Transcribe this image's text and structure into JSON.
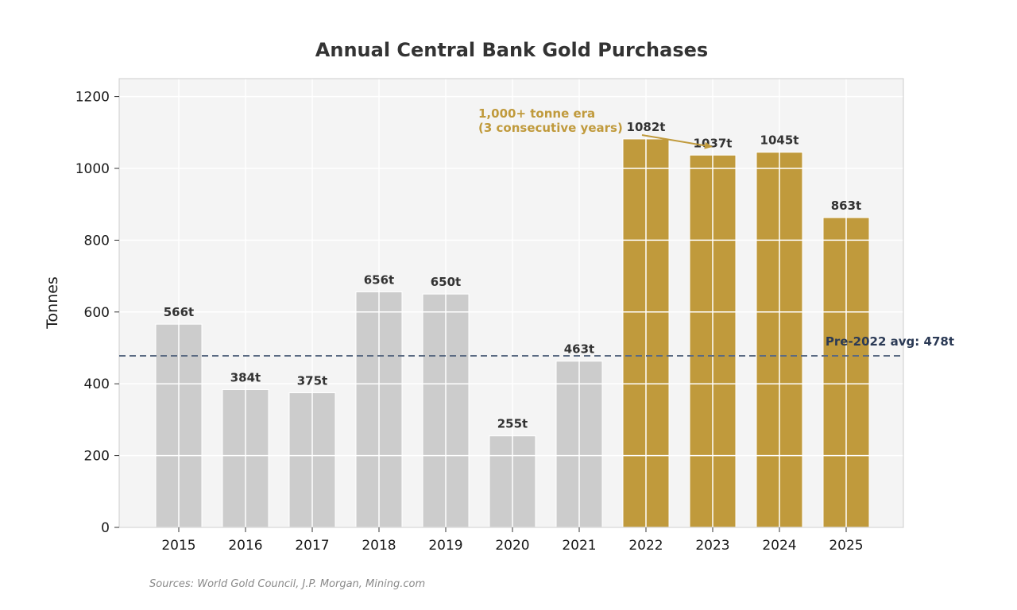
{
  "chart_data": {
    "type": "bar",
    "title": "Annual Central Bank Gold Purchases",
    "xlabel": "",
    "ylabel": "Tonnes",
    "ylim": [
      0,
      1250
    ],
    "yticks": [
      0,
      200,
      400,
      600,
      800,
      1000,
      1200
    ],
    "grid": true,
    "categories": [
      "2015",
      "2016",
      "2017",
      "2018",
      "2019",
      "2020",
      "2021",
      "2022",
      "2023",
      "2024",
      "2025"
    ],
    "values": [
      566,
      384,
      375,
      656,
      650,
      255,
      463,
      1082,
      1037,
      1045,
      863
    ],
    "value_labels": [
      "566t",
      "384t",
      "375t",
      "656t",
      "650t",
      "255t",
      "463t",
      "1082t",
      "1037t",
      "1045t",
      "863t"
    ],
    "highlight_from": "2022",
    "reference_line": {
      "value": 478,
      "label": "Pre-2022 avg: 478t",
      "style": "dashed"
    },
    "annotation": {
      "lines": [
        "1,000+ tonne era",
        "(3 consecutive years)"
      ],
      "arrow_to_category": "2023",
      "arrow_to_value": 1060
    },
    "source": "Sources: World Gold Council, J.P. Morgan, Mining.com"
  },
  "colors": {
    "base_bar": "#cccccc",
    "highlight_bar": "#c09a3c",
    "plot_background": "#f4f4f4",
    "grid": "#ffffff",
    "reference_line": "#5a6a82",
    "reference_label": "#2b3a55",
    "annotation": "#c09a3c"
  }
}
